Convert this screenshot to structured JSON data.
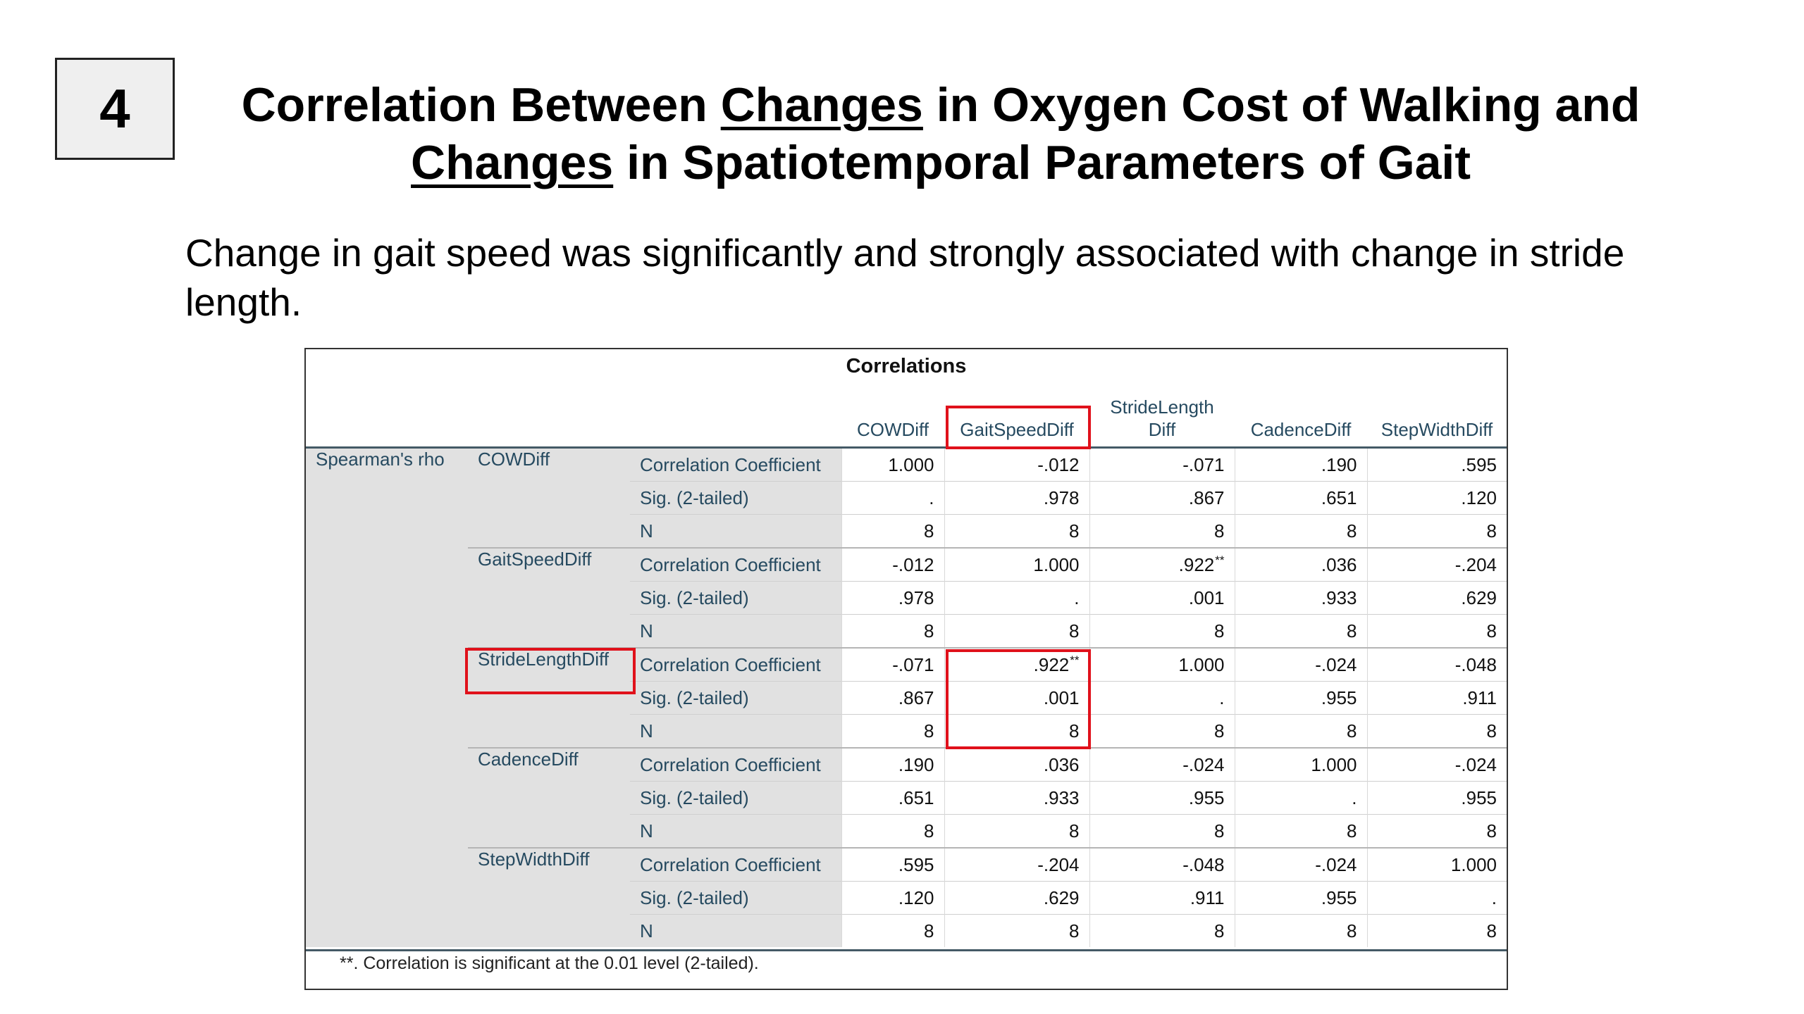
{
  "slide_number": "4",
  "title": {
    "p1": "Correlation Between ",
    "u1": "Changes",
    "p2": " in Oxygen Cost of Walking and",
    "u2": "Changes",
    "p3": " in Spatiotemporal Parameters of Gait"
  },
  "subtitle": "Change in gait speed was significantly and strongly associated with change in stride length.",
  "table": {
    "caption": "Correlations",
    "method": "Spearman's rho",
    "columns": [
      "COWDiff",
      "GaitSpeedDiff",
      "StrideLength Diff",
      "CadenceDiff",
      "StepWidthDiff"
    ],
    "stat_labels": [
      "Correlation Coefficient",
      "Sig. (2-tailed)",
      "N"
    ],
    "groups": [
      {
        "variable": "COWDiff",
        "stats": [
          [
            "1.000",
            "-.012",
            "-.071",
            ".190",
            ".595"
          ],
          [
            ".",
            ".978",
            ".867",
            ".651",
            ".120"
          ],
          [
            "8",
            "8",
            "8",
            "8",
            "8"
          ]
        ]
      },
      {
        "variable": "GaitSpeedDiff",
        "stats": [
          [
            "-.012",
            "1.000",
            ".922**",
            ".036",
            "-.204"
          ],
          [
            ".978",
            ".",
            ".001",
            ".933",
            ".629"
          ],
          [
            "8",
            "8",
            "8",
            "8",
            "8"
          ]
        ]
      },
      {
        "variable": "StrideLengthDiff",
        "stats": [
          [
            "-.071",
            ".922**",
            "1.000",
            "-.024",
            "-.048"
          ],
          [
            ".867",
            ".001",
            ".",
            ".955",
            ".911"
          ],
          [
            "8",
            "8",
            "8",
            "8",
            "8"
          ]
        ]
      },
      {
        "variable": "CadenceDiff",
        "stats": [
          [
            ".190",
            ".036",
            "-.024",
            "1.000",
            "-.024"
          ],
          [
            ".651",
            ".933",
            ".955",
            ".",
            ".955"
          ],
          [
            "8",
            "8",
            "8",
            "8",
            "8"
          ]
        ]
      },
      {
        "variable": "StepWidthDiff",
        "stats": [
          [
            ".595",
            "-.204",
            "-.048",
            "-.024",
            "1.000"
          ],
          [
            ".120",
            ".629",
            ".911",
            ".955",
            "."
          ],
          [
            "8",
            "8",
            "8",
            "8",
            "8"
          ]
        ]
      }
    ],
    "footnote": "**. Correlation is significant at the 0.01 level (2-tailed).",
    "highlight_color": "#e0111b"
  }
}
